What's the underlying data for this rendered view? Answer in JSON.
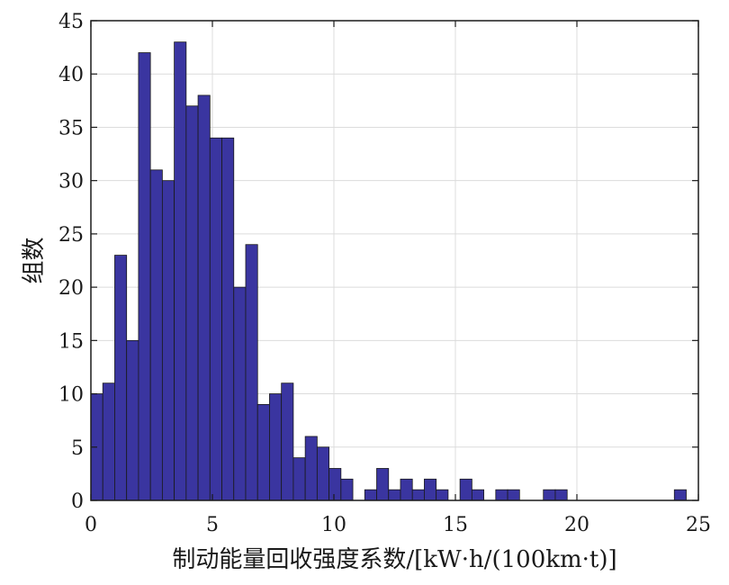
{
  "chart_data": {
    "type": "bar",
    "title": "",
    "xlabel": "制动能量回收强度系数/[kW·h/(100km·t)]",
    "ylabel": "组数",
    "xlim": [
      0,
      25
    ],
    "ylim": [
      0,
      45
    ],
    "xticks": [
      "0",
      "5",
      "10",
      "15",
      "20",
      "25"
    ],
    "yticks": [
      "0",
      "5",
      "10",
      "15",
      "20",
      "25",
      "30",
      "35",
      "40",
      "45"
    ],
    "grid": true,
    "bin_width": 0.49,
    "bin_start": 0,
    "bar_color": "#3a35a0",
    "bar_edge_color": "#1a1a1a",
    "values": [
      10,
      11,
      23,
      15,
      42,
      31,
      30,
      43,
      37,
      38,
      34,
      34,
      20,
      24,
      9,
      10,
      11,
      4,
      6,
      5,
      3,
      2,
      0,
      1,
      3,
      1,
      2,
      1,
      2,
      1,
      0,
      2,
      1,
      0,
      1,
      1,
      0,
      0,
      1,
      1,
      0,
      0,
      0,
      0,
      0,
      0,
      0,
      0,
      0,
      1
    ]
  }
}
